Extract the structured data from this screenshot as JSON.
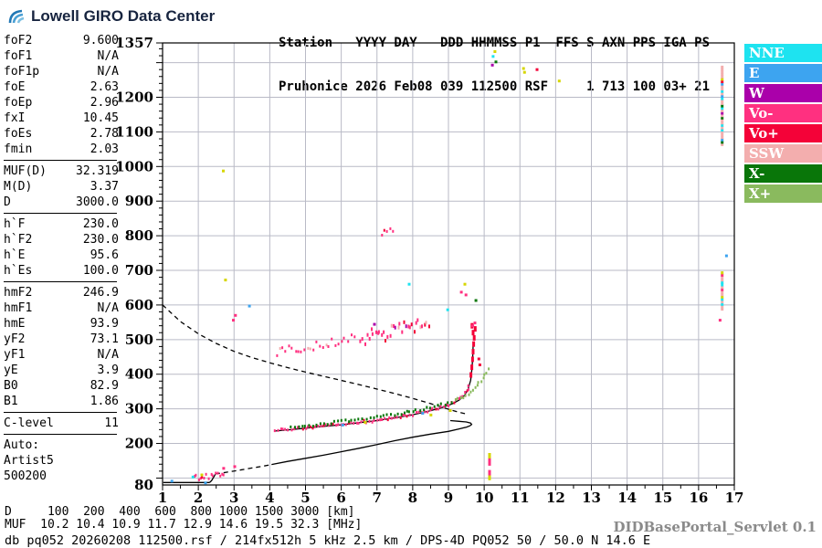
{
  "logo": {
    "text": "Lowell GIRO Data Center"
  },
  "header": {
    "line1": "Station   YYYY DAY   DDD HHMMSS P1  FFS S AXN PPS IGA PS",
    "line2": "Pruhonice 2026 Feb08 039 112500 RSF     1 713 100 03+ 21"
  },
  "params": {
    "groups": [
      {
        "rows": [
          [
            "foF2",
            "9.600"
          ],
          [
            "foF1",
            "N/A"
          ],
          [
            "foF1p",
            "N/A"
          ],
          [
            "foE",
            "2.63"
          ],
          [
            "foEp",
            "2.96"
          ],
          [
            "fxI",
            "10.45"
          ],
          [
            "foEs",
            "2.78"
          ],
          [
            "fmin",
            "2.03"
          ]
        ]
      },
      {
        "rows": [
          [
            "MUF(D)",
            "32.319"
          ],
          [
            "M(D)",
            "3.37"
          ],
          [
            "D",
            "3000.0"
          ]
        ]
      },
      {
        "rows": [
          [
            "h`F",
            "230.0"
          ],
          [
            "h`F2",
            "230.0"
          ],
          [
            "h`E",
            "95.6"
          ],
          [
            "h`Es",
            "100.0"
          ]
        ]
      },
      {
        "rows": [
          [
            "hmF2",
            "246.9"
          ],
          [
            "hmF1",
            "N/A"
          ],
          [
            "hmE",
            "93.9"
          ],
          [
            "yF2",
            "73.1"
          ],
          [
            "yF1",
            "N/A"
          ],
          [
            "yE",
            "3.9"
          ],
          [
            "B0",
            "82.9"
          ],
          [
            "B1",
            "1.86"
          ]
        ]
      },
      {
        "rows": [
          [
            "C-level",
            "11"
          ]
        ]
      }
    ],
    "auto": [
      "Auto:",
      "Artist5",
      "500200"
    ]
  },
  "legend": {
    "items": [
      {
        "label": "NNE",
        "color": "#1ee3f0"
      },
      {
        "label": "E",
        "color": "#3da4f0"
      },
      {
        "label": "W",
        "color": "#aa00aa"
      },
      {
        "label": "Vo-",
        "color": "#ff3080"
      },
      {
        "label": "Vo+",
        "color": "#f40238"
      },
      {
        "label": "SSW",
        "color": "#f3aeae"
      },
      {
        "label": "X-",
        "color": "#097609"
      },
      {
        "label": "X+",
        "color": "#8aba5e"
      }
    ]
  },
  "footer": {
    "d_line": "D     100  200  400  600  800 1000 1500 3000 [km]",
    "muf_line": "MUF  10.2 10.4 10.9 11.7 12.9 14.6 19.5 32.3 [MHz]",
    "db_line": "db pq052 20260208 112500.rsf / 214fx512h 5 kHz 2.5 km / DPS-4D PQ052 50 / 50.0 N 14.6 E",
    "servlet": "DIDBasePortal_Servlet 0.1"
  },
  "chart_data": {
    "type": "scatter",
    "title": "Pruhonice ionogram 2026 Feb08 039 112500",
    "xlabel": "[MHz]",
    "ylabel": "[km]",
    "x_range": [
      1,
      17
    ],
    "y_range": [
      80,
      1357
    ],
    "x_ticks": [
      1,
      2,
      3,
      4,
      5,
      6,
      7,
      8,
      9,
      10,
      11,
      12,
      13,
      14,
      15,
      16,
      17
    ],
    "y_tick_labels": [
      1357,
      1200,
      1100,
      1000,
      900,
      800,
      700,
      600,
      500,
      400,
      300,
      200,
      80
    ],
    "grid": true,
    "legend_position": "right-outside",
    "colors": {
      "NNE": "#1ee3f0",
      "E": "#3da4f0",
      "W": "#aa00aa",
      "Vo-": "#ff3080",
      "Vo+": "#f40238",
      "SSW": "#f3aeae",
      "X-": "#097609",
      "X+": "#8aba5e",
      "Y": "#d6d600"
    },
    "curves": [
      {
        "name": "muf-transmission-curve",
        "style": "dashed",
        "points": [
          [
            1,
            600
          ],
          [
            1.5,
            552
          ],
          [
            2,
            517
          ],
          [
            2.5,
            489
          ],
          [
            3,
            466
          ],
          [
            3.5,
            448
          ],
          [
            4,
            433
          ],
          [
            4.5,
            419
          ],
          [
            5,
            406
          ],
          [
            5.5,
            394
          ],
          [
            6,
            382
          ],
          [
            6.5,
            370
          ],
          [
            7,
            357
          ],
          [
            7.5,
            344
          ],
          [
            8,
            330
          ],
          [
            8.5,
            315
          ],
          [
            9,
            299
          ],
          [
            9.3,
            290
          ],
          [
            9.5,
            285
          ]
        ]
      },
      {
        "name": "o-trace-fit",
        "style": "solid",
        "points": [
          [
            4.15,
            236
          ],
          [
            4.6,
            240
          ],
          [
            5.0,
            244
          ],
          [
            5.5,
            249
          ],
          [
            6.0,
            254
          ],
          [
            6.5,
            260
          ],
          [
            7.0,
            266
          ],
          [
            7.5,
            274
          ],
          [
            8.0,
            283
          ],
          [
            8.4,
            292
          ],
          [
            8.8,
            303
          ],
          [
            9.1,
            314
          ],
          [
            9.3,
            325
          ],
          [
            9.45,
            339
          ],
          [
            9.55,
            357
          ],
          [
            9.62,
            382
          ],
          [
            9.66,
            417
          ],
          [
            9.68,
            450
          ],
          [
            9.69,
            482
          ]
        ]
      },
      {
        "name": "profile-e-region",
        "style": "solid",
        "points": [
          [
            1.02,
            87
          ],
          [
            2.3,
            87
          ],
          [
            2.34,
            89
          ],
          [
            2.38,
            94
          ],
          [
            2.42,
            101
          ],
          [
            2.46,
            108
          ],
          [
            2.48,
            112
          ]
        ]
      },
      {
        "name": "profile-valley",
        "style": "dashed",
        "points": [
          [
            2.48,
            112
          ],
          [
            2.8,
            117
          ],
          [
            3.1,
            122
          ],
          [
            3.5,
            129
          ],
          [
            3.8,
            134
          ],
          [
            4.05,
            139
          ]
        ]
      },
      {
        "name": "profile-f-region",
        "style": "solid",
        "points": [
          [
            4.05,
            139
          ],
          [
            4.5,
            148
          ],
          [
            5.0,
            157
          ],
          [
            5.5,
            166
          ],
          [
            6.0,
            176
          ],
          [
            6.5,
            186
          ],
          [
            7.0,
            197
          ],
          [
            7.5,
            208
          ],
          [
            8.0,
            218
          ],
          [
            8.5,
            227
          ],
          [
            9.0,
            235
          ],
          [
            9.3,
            242
          ],
          [
            9.5,
            247
          ],
          [
            9.6,
            251
          ],
          [
            9.65,
            255
          ],
          [
            9.62,
            259
          ],
          [
            9.5,
            262
          ],
          [
            9.3,
            264
          ],
          [
            9.05,
            266
          ]
        ]
      }
    ],
    "dot_bands": [
      {
        "name": "o-trace-echoes",
        "step": 3.0,
        "jitter": 1.6,
        "size": [
          2,
          3
        ],
        "palette": [
          "Vo-",
          "Vo-",
          "Vo-",
          "Vo+",
          "Vo-"
        ],
        "path": [
          [
            4.15,
            237
          ],
          [
            4.6,
            241
          ],
          [
            5.0,
            245
          ],
          [
            5.5,
            250
          ],
          [
            6.0,
            255
          ],
          [
            6.5,
            261
          ],
          [
            7.0,
            267
          ],
          [
            7.5,
            275
          ],
          [
            8.0,
            284
          ],
          [
            8.4,
            293
          ],
          [
            8.8,
            304
          ],
          [
            9.1,
            315
          ],
          [
            9.3,
            326
          ],
          [
            9.45,
            340
          ],
          [
            9.55,
            358
          ],
          [
            9.6,
            372
          ]
        ]
      },
      {
        "name": "x-trace-echoes",
        "step": 3.6,
        "jitter": 1.4,
        "size": [
          2,
          3
        ],
        "split_f": 9.15,
        "palette": [
          "X-"
        ],
        "path": [
          [
            4.6,
            246
          ],
          [
            5.0,
            251
          ],
          [
            5.5,
            257
          ],
          [
            6.0,
            263
          ],
          [
            6.5,
            269
          ],
          [
            7.0,
            276
          ],
          [
            7.5,
            284
          ],
          [
            8.0,
            293
          ],
          [
            8.4,
            301
          ],
          [
            8.8,
            311
          ],
          [
            9.1,
            320
          ],
          [
            9.35,
            331
          ],
          [
            9.55,
            344
          ],
          [
            9.75,
            362
          ],
          [
            9.9,
            381
          ],
          [
            10.02,
            400
          ],
          [
            10.12,
            413
          ],
          [
            10.2,
            422
          ]
        ]
      },
      {
        "name": "es-trace-echoes",
        "step": 2.4,
        "jitter": 3.5,
        "size": [
          2,
          3
        ],
        "palette": [
          "Vo-",
          "Vo-",
          "Vo+",
          "Vo-"
        ],
        "path": [
          [
            1.9,
            99
          ],
          [
            2.12,
            102
          ],
          [
            2.35,
            105
          ],
          [
            2.55,
            108
          ],
          [
            2.78,
            113
          ]
        ]
      },
      {
        "name": "spread-f-band-low",
        "step": 3.6,
        "jitter": 5,
        "size": [
          2,
          3
        ],
        "palette": [
          "Vo-",
          "Vo-",
          "Vo-",
          "SSW",
          "Vo-"
        ],
        "path": [
          [
            4.2,
            463
          ],
          [
            4.8,
            474
          ],
          [
            5.4,
            486
          ],
          [
            6.0,
            496
          ],
          [
            6.5,
            504
          ]
        ]
      },
      {
        "name": "spread-f-band-high",
        "step": 2.2,
        "jitter": 8,
        "size": [
          2,
          4
        ],
        "palette": [
          "Vo-",
          "Vo-",
          "Vo+",
          "W",
          "Vo-",
          "SSW",
          "Vo-"
        ],
        "path": [
          [
            6.55,
            505
          ],
          [
            6.9,
            511
          ],
          [
            7.3,
            519
          ],
          [
            7.7,
            529
          ],
          [
            8.1,
            540
          ],
          [
            8.5,
            553
          ]
        ]
      },
      {
        "name": "second-hop-cluster",
        "step": 3.5,
        "jitter": 5,
        "size": [
          2,
          3
        ],
        "palette": [
          "Vo-",
          "Vo+",
          "Vo-"
        ],
        "path": [
          [
            7.12,
            798
          ],
          [
            7.3,
            810
          ],
          [
            7.5,
            826
          ]
        ]
      }
    ],
    "noise_columns": [
      {
        "f": 16.66,
        "h_from": 1063,
        "h_to": 1292,
        "w": 3,
        "palette": [
          "SSW",
          "SSW",
          "SSW",
          "SSW",
          "NNE",
          "Y",
          "X-",
          "E",
          "Vo+",
          "W"
        ]
      },
      {
        "f": 16.66,
        "h_from": 588,
        "h_to": 705,
        "w": 3,
        "palette": [
          "SSW",
          "SSW",
          "SSW",
          "NNE",
          "Y",
          "Vo-"
        ]
      },
      {
        "f": 10.15,
        "h_from": 98,
        "h_to": 168,
        "w": 3,
        "palette": [
          "Y",
          "Y",
          "Y",
          "Vo-"
        ]
      }
    ],
    "red_blobs": [
      [
        9.63,
        398
      ],
      [
        9.655,
        420
      ],
      [
        9.675,
        443
      ],
      [
        9.69,
        465
      ],
      [
        9.705,
        487
      ],
      [
        9.72,
        505
      ],
      [
        9.69,
        520
      ],
      [
        9.75,
        531
      ],
      [
        9.66,
        540
      ]
    ],
    "strays": [
      [
        1.26,
        91,
        "E"
      ],
      [
        2.71,
        128,
        "Vo-"
      ],
      [
        3.02,
        133,
        "Vo-"
      ],
      [
        2.76,
        672,
        "Y"
      ],
      [
        2.98,
        556,
        "Vo-"
      ],
      [
        3.04,
        570,
        "Vo-"
      ],
      [
        3.43,
        597,
        "E"
      ],
      [
        2.7,
        987,
        "Y"
      ],
      [
        7.9,
        660,
        "NNE"
      ],
      [
        9.46,
        660,
        "Y"
      ],
      [
        9.36,
        637,
        "Vo-"
      ],
      [
        9.49,
        629,
        "Vo-"
      ],
      [
        8.98,
        586,
        "NNE"
      ],
      [
        9.77,
        613,
        "X-"
      ],
      [
        6.93,
        544,
        "W"
      ],
      [
        10.23,
        1293,
        "W"
      ],
      [
        11.1,
        1283,
        "Y"
      ],
      [
        11.13,
        1272,
        "Y"
      ],
      [
        11.48,
        1280,
        "Vo+"
      ],
      [
        12.1,
        1247,
        "Y"
      ],
      [
        16.78,
        742,
        "E"
      ],
      [
        10.25,
        1318,
        "NNE"
      ],
      [
        10.33,
        1302,
        "X-"
      ],
      [
        10.3,
        1332,
        "Y"
      ],
      [
        9.68,
        540,
        "Vo-"
      ],
      [
        9.74,
        548,
        "Vo-"
      ],
      [
        9.85,
        444,
        "Vo+"
      ],
      [
        9.88,
        427,
        "Vo+"
      ],
      [
        2.2,
        86,
        "E"
      ],
      [
        6.04,
        253,
        "E"
      ],
      [
        8.28,
        287,
        "E"
      ],
      [
        6.67,
        261,
        "Y"
      ],
      [
        8.51,
        282,
        "Y"
      ],
      [
        9.05,
        295,
        "Y"
      ],
      [
        1.85,
        103,
        "NNE"
      ],
      [
        2.1,
        109,
        "Y"
      ],
      [
        16.6,
        556,
        "Vo-"
      ]
    ]
  }
}
